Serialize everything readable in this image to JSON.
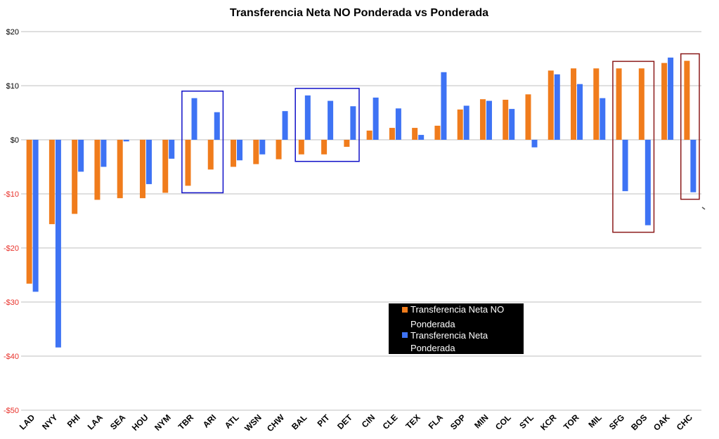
{
  "chart_data": {
    "type": "bar",
    "title": "Transferencia Neta NO Ponderada vs Ponderada",
    "xlabel": "",
    "ylabel": "",
    "ylim": [
      -50,
      20
    ],
    "yticks": [
      20,
      10,
      0,
      -10,
      -20,
      -30,
      -40,
      -50
    ],
    "ytick_labels": [
      "$20",
      "$10",
      "$0",
      "-$10",
      "-$20",
      "-$30",
      "-$40",
      "-$50"
    ],
    "grid": true,
    "categories": [
      "LAD",
      "NYY",
      "PHI",
      "LAA",
      "SEA",
      "HOU",
      "NYM",
      "TBR",
      "ARI",
      "ATL",
      "WSN",
      "CHW",
      "BAL",
      "PIT",
      "DET",
      "CIN",
      "CLE",
      "TEX",
      "FLA",
      "SDP",
      "MIN",
      "COL",
      "STL",
      "KCR",
      "TOR",
      "MIL",
      "SFG",
      "BOS",
      "OAK",
      "CHC"
    ],
    "series": [
      {
        "name": "Transferencia Neta NO Ponderada",
        "color": "#F07C1C",
        "values": [
          -26.6,
          -15.6,
          -13.7,
          -11.1,
          -10.8,
          -10.8,
          -9.8,
          -8.5,
          -5.5,
          -5.0,
          -4.5,
          -3.6,
          -2.7,
          -2.7,
          -1.3,
          1.7,
          2.2,
          2.2,
          2.6,
          5.6,
          7.5,
          7.4,
          8.4,
          12.8,
          13.2,
          13.2,
          13.2,
          13.2,
          14.2,
          14.6
        ]
      },
      {
        "name": "Transferencia Neta Ponderada",
        "color": "#3E73F4",
        "values": [
          -28.1,
          -38.4,
          -5.9,
          -5.0,
          -0.3,
          -8.2,
          -3.5,
          7.7,
          5.1,
          -3.8,
          -2.7,
          5.3,
          8.2,
          7.2,
          6.2,
          7.8,
          5.8,
          0.9,
          12.5,
          6.3,
          7.2,
          5.7,
          -1.4,
          12.1,
          10.3,
          7.7,
          -9.5,
          -15.8,
          15.2,
          -9.7
        ]
      }
    ],
    "highlight_groups": [
      {
        "categories": [
          "TBR",
          "ARI"
        ],
        "color": "#1010C8"
      },
      {
        "categories": [
          "BAL",
          "PIT",
          "DET"
        ],
        "color": "#1010C8"
      },
      {
        "categories": [
          "SFG",
          "BOS"
        ],
        "color": "#8B1A1A"
      },
      {
        "categories": [
          "CHC"
        ],
        "color": "#8B1A1A"
      }
    ],
    "legend": {
      "position": "bottom-center",
      "background": "#000000",
      "entries": [
        {
          "line1": "Transferencia Neta NO",
          "line2": "Ponderada",
          "color": "#F07C1C"
        },
        {
          "line1": "Transferencia Neta",
          "line2": "Ponderada",
          "color": "#3E73F4"
        }
      ]
    },
    "colors": {
      "grid": "#BFBFBF",
      "positive_tick": "#000000",
      "negative_tick": "#E8312A"
    }
  }
}
